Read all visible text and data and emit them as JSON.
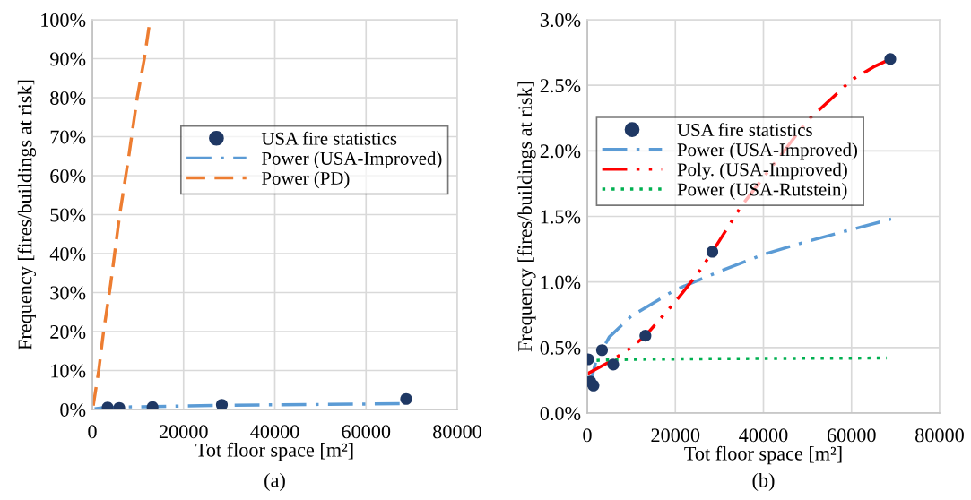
{
  "chart_data": [
    {
      "type": "scatter",
      "xlabel": "Tot floor space [m²]",
      "ylabel": "Frequency [fires/buildings at risk]",
      "annotations": [
        "(a)"
      ],
      "xlim": [
        0,
        80000
      ],
      "xticks": [
        0,
        20000,
        40000,
        60000,
        80000
      ],
      "ylim": [
        0,
        100
      ],
      "yticks": [
        {
          "value": 0,
          "label": "0%"
        },
        {
          "value": 10,
          "label": "10%"
        },
        {
          "value": 20,
          "label": "20%"
        },
        {
          "value": 30,
          "label": "30%"
        },
        {
          "value": 40,
          "label": "40%"
        },
        {
          "value": 50,
          "label": "50%"
        },
        {
          "value": 60,
          "label": "60%"
        },
        {
          "value": 70,
          "label": "70%"
        },
        {
          "value": 80,
          "label": "80%"
        },
        {
          "value": 90,
          "label": "90%"
        },
        {
          "value": 100,
          "label": "100%"
        }
      ],
      "grid": true,
      "legend": "center right",
      "series": [
        {
          "name": "USA fire statistics",
          "type": "scatter",
          "marker": "circle",
          "color": "#1f3864",
          "x": [
            3350,
            5900,
            13200,
            28400,
            68800
          ],
          "values": [
            0.5,
            0.4,
            0.6,
            1.2,
            2.7
          ]
        },
        {
          "name": "Power (USA-Improved)",
          "type": "line",
          "line_style": "dashdot",
          "color": "#5b9bd5",
          "x": [
            500,
            2000,
            5000,
            10000,
            20000,
            30000,
            40000,
            50000,
            60000,
            69000
          ],
          "values": [
            0.2,
            0.4,
            0.6,
            0.7,
            0.9,
            1.1,
            1.2,
            1.3,
            1.4,
            1.5
          ]
        },
        {
          "name": "Power (PD)",
          "type": "line",
          "line_style": "dashed",
          "color": "#ed7d31",
          "x": [
            200,
            1400,
            2460,
            4000,
            6000,
            8000,
            9840,
            11400,
            12650
          ],
          "values": [
            1,
            10,
            20,
            32,
            50,
            65,
            80,
            90,
            100
          ]
        }
      ]
    },
    {
      "type": "scatter",
      "xlabel": "Tot floor space [m²]",
      "ylabel": "Frequency [fires/buildings at risk]",
      "annotations": [
        "(b)"
      ],
      "xlim": [
        0,
        80000
      ],
      "xticks": [
        0,
        20000,
        40000,
        60000,
        80000
      ],
      "ylim": [
        0,
        3
      ],
      "yticks": [
        {
          "value": 0,
          "label": "0.0%"
        },
        {
          "value": 0.5,
          "label": "0.5%"
        },
        {
          "value": 1,
          "label": "1.0%"
        },
        {
          "value": 1.5,
          "label": "1.5%"
        },
        {
          "value": 2,
          "label": "2.0%"
        },
        {
          "value": 2.5,
          "label": "2.5%"
        },
        {
          "value": 3,
          "label": "3.0%"
        }
      ],
      "grid": true,
      "legend": "center left",
      "series": [
        {
          "name": "USA fire statistics",
          "type": "scatter",
          "marker": "circle",
          "color": "#1f3864",
          "x": [
            200,
            700,
            1400,
            3350,
            5900,
            13200,
            28400,
            68800
          ],
          "values": [
            0.41,
            0.24,
            0.21,
            0.48,
            0.37,
            0.59,
            1.23,
            2.7
          ]
        },
        {
          "name": "Power (USA-Improved)",
          "type": "line",
          "line_style": "dashdot",
          "color": "#5b9bd5",
          "x": [
            500,
            2000,
            5000,
            10000,
            20000,
            30000,
            40000,
            50000,
            60000,
            69000
          ],
          "values": [
            0.2,
            0.4,
            0.58,
            0.74,
            0.94,
            1.08,
            1.21,
            1.31,
            1.4,
            1.48
          ]
        },
        {
          "name": "Poly. (USA-Improved)",
          "type": "line",
          "line_style": "dashdotdot",
          "color": "#ff0000",
          "x": [
            0,
            5000,
            10000,
            13200,
            20000,
            25000,
            28400,
            35000,
            50000,
            60000,
            65000,
            68800
          ],
          "values": [
            0.3,
            0.39,
            0.5,
            0.59,
            0.85,
            1.06,
            1.23,
            1.58,
            2.23,
            2.54,
            2.64,
            2.7
          ]
        },
        {
          "name": "Power (USA-Rutstein)",
          "type": "line",
          "line_style": "dotted",
          "color": "#00b050",
          "x": [
            0,
            10000,
            30000,
            50000,
            68000
          ],
          "values": [
            0.4,
            0.41,
            0.415,
            0.418,
            0.42
          ]
        }
      ]
    }
  ]
}
